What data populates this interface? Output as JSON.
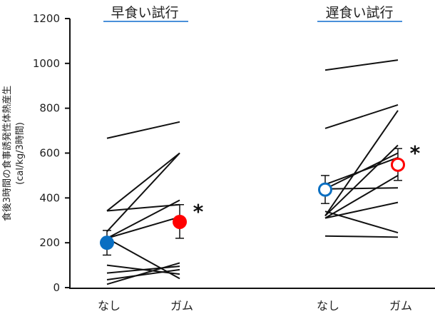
{
  "chart_data": {
    "type": "line",
    "title": "",
    "ylabel": "食後3時間の食事誘発性体熱産生",
    "ylabel_unit": "(cal/kg/3時間)",
    "xlabel": "",
    "ylim": [
      0,
      1200
    ],
    "yticks": [
      0,
      200,
      400,
      600,
      800,
      1000,
      1200
    ],
    "grid": false,
    "panels": [
      {
        "title": "早食い試行",
        "categories": [
          "なし",
          "ガム"
        ],
        "individual_lines": [
          [
            666,
            739
          ],
          [
            342,
            600
          ],
          [
            250,
            600
          ],
          [
            342,
            370
          ],
          [
            220,
            390
          ],
          [
            220,
            315
          ],
          [
            220,
            40
          ],
          [
            100,
            60
          ],
          [
            65,
            95
          ],
          [
            35,
            80
          ],
          [
            15,
            110
          ]
        ],
        "means": [
          200,
          293
        ],
        "error_low": [
          145,
          220
        ],
        "error_high": [
          255,
          370
        ],
        "marker_fill": [
          "#0a6fc2",
          "#ff0000"
        ],
        "marker_style": "filled",
        "significance": "*"
      },
      {
        "title": "遅食い試行",
        "categories": [
          "なし",
          "ガム"
        ],
        "individual_lines": [
          [
            970,
            1015
          ],
          [
            710,
            815
          ],
          [
            320,
            790
          ],
          [
            320,
            635
          ],
          [
            460,
            580
          ],
          [
            440,
            600
          ],
          [
            440,
            445
          ],
          [
            310,
            500
          ],
          [
            310,
            380
          ],
          [
            340,
            245
          ],
          [
            230,
            225
          ]
        ],
        "means": [
          437,
          548
        ],
        "error_low": [
          375,
          478
        ],
        "error_high": [
          500,
          620
        ],
        "marker_fill": [
          "#0a6fc2",
          "#ff0000"
        ],
        "marker_style": "open",
        "significance": "*"
      }
    ]
  },
  "labels": {
    "panel1_title": "早食い試行",
    "panel2_title": "遅食い試行",
    "ylabel_line1": "食後3時間の食事誘発性体熱産生",
    "ylabel_line2": "(cal/kg/3時間)",
    "cat_p1_none": "なし",
    "cat_p1_gum": "ガム",
    "cat_p2_none": "なし",
    "cat_p2_gum": "ガム",
    "star": "*",
    "ticks": [
      "0",
      "200",
      "400",
      "600",
      "800",
      "1000",
      "1200"
    ]
  },
  "colors": {
    "blue": "#0a6fc2",
    "red": "#ff0000",
    "title_underline": "#4a90d9"
  }
}
